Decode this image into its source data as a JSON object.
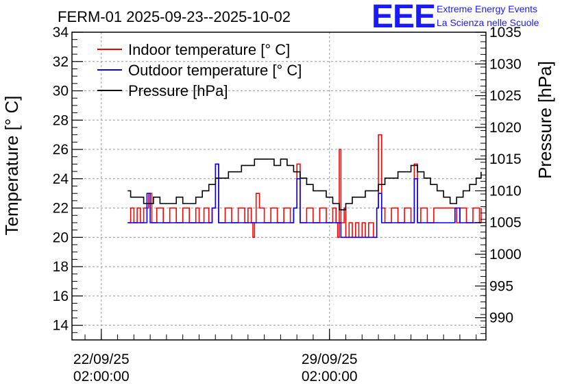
{
  "header": {
    "title": "FERM-01 2025-09-23--2025-10-02",
    "logo_text": "EEE",
    "logo_line1": "Extreme Energy Events",
    "logo_line2": "La Scienza nelle Scuole"
  },
  "colors": {
    "indoor": "#ff0000",
    "outdoor": "#0000ff",
    "pressure": "#000000",
    "grid": "#999999",
    "logo": "#1a1aff"
  },
  "chart_data": {
    "type": "line",
    "title": "FERM-01 2025-09-23--2025-10-02",
    "grid": true,
    "legend_position": "top-left",
    "x_axis": {
      "range_days": [
        21.1,
        33.8
      ],
      "ticks": [
        {
          "day": 22.0,
          "line1": "22/09/25",
          "line2": "02:00:00"
        },
        {
          "day": 29.0,
          "line1": "29/09/25",
          "line2": "02:00:00"
        }
      ]
    },
    "y_left": {
      "label": "Temperature [° C]",
      "range": [
        13,
        34
      ],
      "ticks": [
        14,
        16,
        18,
        20,
        22,
        24,
        26,
        28,
        30,
        32,
        34
      ]
    },
    "y_right": {
      "label": "Pressure [hPa]",
      "range": [
        986.5,
        1035
      ],
      "ticks": [
        990,
        995,
        1000,
        1005,
        1010,
        1015,
        1020,
        1025,
        1030,
        1035
      ]
    },
    "series": [
      {
        "name": "Indoor temperature [° C]",
        "axis": "left",
        "points": [
          [
            22.81,
            21
          ],
          [
            22.9,
            22
          ],
          [
            23.0,
            21
          ],
          [
            23.1,
            22
          ],
          [
            23.2,
            21
          ],
          [
            23.3,
            22
          ],
          [
            23.45,
            23
          ],
          [
            23.55,
            21
          ],
          [
            23.7,
            22
          ],
          [
            23.9,
            21
          ],
          [
            24.1,
            22
          ],
          [
            24.3,
            21
          ],
          [
            24.5,
            22
          ],
          [
            24.7,
            21
          ],
          [
            24.9,
            22
          ],
          [
            25.0,
            21
          ],
          [
            25.15,
            22
          ],
          [
            25.3,
            21
          ],
          [
            25.4,
            22
          ],
          [
            25.5,
            25
          ],
          [
            25.6,
            21
          ],
          [
            25.8,
            22
          ],
          [
            26.0,
            21
          ],
          [
            26.2,
            22
          ],
          [
            26.4,
            21
          ],
          [
            26.5,
            22
          ],
          [
            26.6,
            21
          ],
          [
            26.65,
            20
          ],
          [
            26.7,
            21
          ],
          [
            26.75,
            23
          ],
          [
            26.85,
            22
          ],
          [
            27.0,
            21
          ],
          [
            27.2,
            22
          ],
          [
            27.4,
            21
          ],
          [
            27.6,
            22
          ],
          [
            27.8,
            21
          ],
          [
            27.9,
            22
          ],
          [
            28.0,
            25
          ],
          [
            28.1,
            21
          ],
          [
            28.3,
            22
          ],
          [
            28.5,
            21
          ],
          [
            28.7,
            22
          ],
          [
            28.9,
            21
          ],
          [
            29.1,
            22
          ],
          [
            29.2,
            21
          ],
          [
            29.25,
            20
          ],
          [
            29.3,
            26
          ],
          [
            29.35,
            21
          ],
          [
            29.45,
            22
          ],
          [
            29.5,
            20
          ],
          [
            29.6,
            21
          ],
          [
            29.7,
            20
          ],
          [
            29.8,
            21
          ],
          [
            29.9,
            20
          ],
          [
            30.0,
            21
          ],
          [
            30.1,
            20
          ],
          [
            30.2,
            21
          ],
          [
            30.35,
            20
          ],
          [
            30.45,
            22
          ],
          [
            30.5,
            27
          ],
          [
            30.6,
            22
          ],
          [
            30.7,
            21
          ],
          [
            30.9,
            22
          ],
          [
            31.1,
            21
          ],
          [
            31.3,
            22
          ],
          [
            31.5,
            21
          ],
          [
            31.6,
            25
          ],
          [
            31.7,
            21
          ],
          [
            31.8,
            22
          ],
          [
            32.0,
            21
          ],
          [
            32.2,
            22
          ],
          [
            32.4,
            22
          ],
          [
            32.6,
            22
          ],
          [
            32.8,
            22
          ],
          [
            32.9,
            21
          ],
          [
            33.0,
            22
          ],
          [
            33.2,
            21
          ],
          [
            33.4,
            22
          ],
          [
            33.6,
            21
          ],
          [
            33.65,
            22
          ]
        ]
      },
      {
        "name": "Outdoor temperature [° C]",
        "axis": "left",
        "points": [
          [
            22.81,
            21
          ],
          [
            23.3,
            21
          ],
          [
            23.4,
            23
          ],
          [
            23.5,
            21
          ],
          [
            23.9,
            21
          ],
          [
            24.3,
            21
          ],
          [
            24.7,
            21
          ],
          [
            25.1,
            21
          ],
          [
            25.4,
            22
          ],
          [
            25.5,
            25
          ],
          [
            25.6,
            21
          ],
          [
            26.0,
            21
          ],
          [
            26.5,
            21
          ],
          [
            27.0,
            21
          ],
          [
            27.5,
            21
          ],
          [
            27.9,
            22
          ],
          [
            28.0,
            24
          ],
          [
            28.1,
            21
          ],
          [
            28.5,
            21
          ],
          [
            29.0,
            21
          ],
          [
            29.2,
            21
          ],
          [
            29.35,
            20
          ],
          [
            29.6,
            20
          ],
          [
            29.9,
            20
          ],
          [
            30.2,
            20
          ],
          [
            30.4,
            20
          ],
          [
            30.45,
            22
          ],
          [
            30.5,
            23
          ],
          [
            30.6,
            21
          ],
          [
            31.0,
            21
          ],
          [
            31.6,
            24
          ],
          [
            31.7,
            21
          ],
          [
            32.2,
            21
          ],
          [
            32.85,
            22
          ],
          [
            33.0,
            21
          ],
          [
            33.3,
            21
          ],
          [
            33.65,
            21
          ]
        ]
      },
      {
        "name": "Pressure [hPa]",
        "axis": "right",
        "points": [
          [
            22.81,
            1010
          ],
          [
            22.9,
            1009
          ],
          [
            23.1,
            1009
          ],
          [
            23.3,
            1008
          ],
          [
            23.5,
            1008
          ],
          [
            23.6,
            1009
          ],
          [
            23.8,
            1008
          ],
          [
            24.0,
            1008
          ],
          [
            24.2,
            1008
          ],
          [
            24.3,
            1009
          ],
          [
            24.5,
            1008
          ],
          [
            24.7,
            1008
          ],
          [
            24.9,
            1009
          ],
          [
            25.1,
            1010
          ],
          [
            25.3,
            1011
          ],
          [
            25.5,
            1012
          ],
          [
            25.7,
            1012
          ],
          [
            25.9,
            1013
          ],
          [
            26.1,
            1013
          ],
          [
            26.3,
            1014
          ],
          [
            26.5,
            1014
          ],
          [
            26.7,
            1015
          ],
          [
            26.9,
            1015
          ],
          [
            27.1,
            1015
          ],
          [
            27.3,
            1014
          ],
          [
            27.5,
            1015
          ],
          [
            27.7,
            1014
          ],
          [
            27.9,
            1013
          ],
          [
            28.1,
            1012
          ],
          [
            28.3,
            1011
          ],
          [
            28.5,
            1010
          ],
          [
            28.7,
            1010
          ],
          [
            28.9,
            1009
          ],
          [
            29.1,
            1008
          ],
          [
            29.3,
            1007
          ],
          [
            29.5,
            1008
          ],
          [
            29.7,
            1009
          ],
          [
            29.9,
            1009
          ],
          [
            30.1,
            1010
          ],
          [
            30.3,
            1010
          ],
          [
            30.5,
            1011
          ],
          [
            30.7,
            1012
          ],
          [
            30.9,
            1012
          ],
          [
            31.1,
            1013
          ],
          [
            31.3,
            1013
          ],
          [
            31.5,
            1014
          ],
          [
            31.7,
            1013
          ],
          [
            31.9,
            1012
          ],
          [
            32.1,
            1011
          ],
          [
            32.3,
            1010
          ],
          [
            32.5,
            1009
          ],
          [
            32.7,
            1008
          ],
          [
            32.9,
            1009
          ],
          [
            33.1,
            1010
          ],
          [
            33.3,
            1011
          ],
          [
            33.5,
            1012
          ],
          [
            33.65,
            1013
          ]
        ]
      }
    ]
  }
}
